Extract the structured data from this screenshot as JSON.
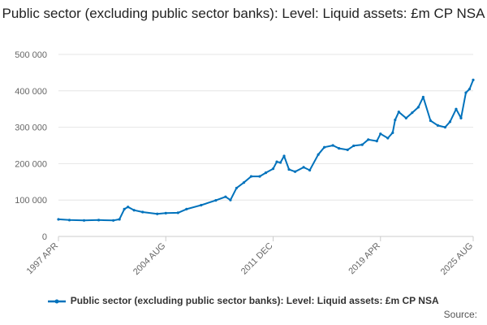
{
  "chart_data": {
    "type": "line",
    "title": "Public sector (excluding public sector banks): Level: Liquid assets: £m CP NSA",
    "xlabel": "",
    "ylabel": "",
    "ylim": [
      0,
      500000
    ],
    "yticks": [
      0,
      100000,
      200000,
      300000,
      400000,
      500000
    ],
    "ytick_labels": [
      "0",
      "100 000",
      "200 000",
      "300 000",
      "400 000",
      "500 000"
    ],
    "xlim": [
      "1997-04",
      "2025-08"
    ],
    "xticks": [
      "1997-04",
      "2004-08",
      "2011-12",
      "2019-04",
      "2025-08"
    ],
    "xtick_labels": [
      "1997 APR",
      "2004 AUG",
      "2011 DEC",
      "2019 APR",
      "2025 AUG"
    ],
    "grid": true,
    "legend_position": "bottom",
    "colors": {
      "series": "#0072bc",
      "grid": "#e6e6e6",
      "axis": "#cccccc"
    },
    "series": [
      {
        "name": "Public sector (excluding public sector banks): Level: Liquid assets: £m CP NSA",
        "x": [
          "1997-04",
          "1998-01",
          "1999-01",
          "2000-01",
          "2001-01",
          "2001-06",
          "2001-10",
          "2002-01",
          "2002-06",
          "2003-01",
          "2004-01",
          "2004-08",
          "2005-06",
          "2006-01",
          "2007-01",
          "2008-01",
          "2008-09",
          "2009-01",
          "2009-06",
          "2009-12",
          "2010-06",
          "2011-01",
          "2011-06",
          "2011-12",
          "2012-03",
          "2012-06",
          "2012-09",
          "2013-01",
          "2013-06",
          "2014-01",
          "2014-06",
          "2015-01",
          "2015-06",
          "2016-01",
          "2016-06",
          "2017-01",
          "2017-06",
          "2018-01",
          "2018-06",
          "2019-01",
          "2019-04",
          "2019-10",
          "2020-02",
          "2020-04",
          "2020-07",
          "2021-01",
          "2021-06",
          "2021-11",
          "2022-03",
          "2022-09",
          "2023-03",
          "2023-09",
          "2024-01",
          "2024-06",
          "2024-10",
          "2025-02",
          "2025-05",
          "2025-08"
        ],
        "values": [
          47000,
          45000,
          44000,
          45000,
          44000,
          47000,
          75000,
          81000,
          72000,
          67000,
          62000,
          64000,
          65000,
          75000,
          86000,
          99000,
          109000,
          100000,
          133000,
          148000,
          165000,
          165000,
          175000,
          186000,
          205000,
          203000,
          221000,
          184000,
          178000,
          190000,
          182000,
          225000,
          245000,
          250000,
          242000,
          238000,
          249000,
          252000,
          266000,
          262000,
          282000,
          270000,
          285000,
          320000,
          342000,
          325000,
          340000,
          355000,
          383000,
          318000,
          305000,
          300000,
          315000,
          350000,
          325000,
          395000,
          405000,
          430000
        ]
      }
    ]
  },
  "legend": {
    "label": "Public sector (excluding public sector banks): Level: Liquid assets: £m CP NSA"
  },
  "source": {
    "label": "Source:"
  }
}
